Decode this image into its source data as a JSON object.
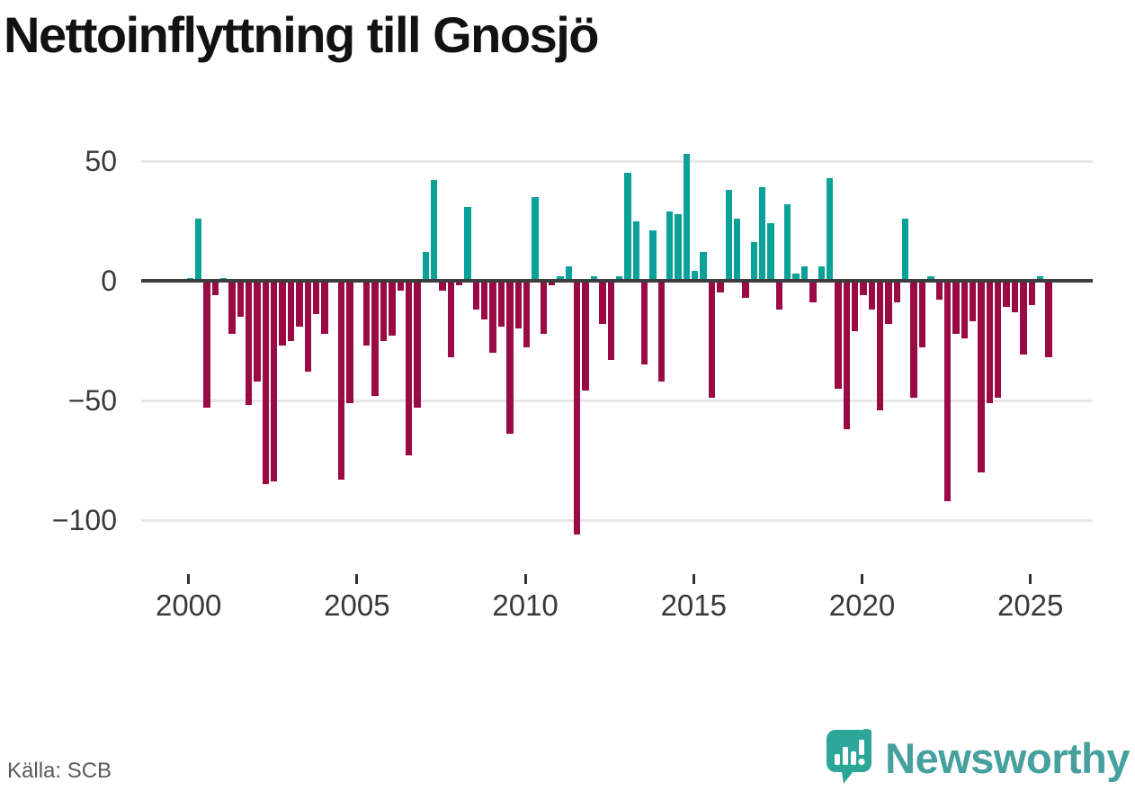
{
  "title": "Nettoinflyttning till Gnosjö",
  "source": "Källa: SCB",
  "branding": {
    "logo_text": "Newsworthy",
    "logo_icon": "speech-bubble-bar-chart-icon"
  },
  "colors": {
    "positive_bar": "#0aa198",
    "negative_bar": "#9a0a45",
    "zero_axis": "#3d3d3d",
    "gridline": "#e7e7e7",
    "title_text": "#121212",
    "axis_text": "#383838",
    "source_text": "#5a5a5a",
    "brand_teal": "#46a09d",
    "brand_bubble": "#2ca699"
  },
  "chart_data": {
    "type": "bar",
    "title": "Nettoinflyttning till Gnosjö",
    "xlabel": "",
    "ylabel": "",
    "frequency": "quarterly",
    "period_start": "2000 Q1",
    "period_end": "2025 Q3",
    "grid": true,
    "legend": false,
    "ylim": [
      -115,
      60
    ],
    "y_axis": {
      "ticks": [
        {
          "value": 50,
          "label": "50"
        },
        {
          "value": 0,
          "label": "0"
        },
        {
          "value": -50,
          "label": "−50"
        },
        {
          "value": -100,
          "label": "−100"
        }
      ]
    },
    "x_axis": {
      "ticks": [
        {
          "year": 2000,
          "label": "2000"
        },
        {
          "year": 2005,
          "label": "2005"
        },
        {
          "year": 2010,
          "label": "2010"
        },
        {
          "year": 2015,
          "label": "2015"
        },
        {
          "year": 2020,
          "label": "2020"
        },
        {
          "year": 2025,
          "label": "2025"
        }
      ]
    },
    "years": [
      {
        "year": 2000,
        "q": [
          1,
          26,
          -53,
          -6
        ]
      },
      {
        "year": 2001,
        "q": [
          1,
          -22,
          -15,
          -52
        ]
      },
      {
        "year": 2002,
        "q": [
          -42,
          -85,
          -84,
          -27
        ]
      },
      {
        "year": 2003,
        "q": [
          -25,
          -19,
          -38,
          -14
        ]
      },
      {
        "year": 2004,
        "q": [
          -22,
          0,
          -83,
          -51
        ]
      },
      {
        "year": 2005,
        "q": [
          0,
          -27,
          -48,
          -25
        ]
      },
      {
        "year": 2006,
        "q": [
          -23,
          -4,
          -73,
          -53
        ]
      },
      {
        "year": 2007,
        "q": [
          12,
          42,
          -4,
          -32
        ]
      },
      {
        "year": 2008,
        "q": [
          -2,
          31,
          -12,
          -16
        ]
      },
      {
        "year": 2009,
        "q": [
          -30,
          -19,
          -64,
          -20
        ]
      },
      {
        "year": 2010,
        "q": [
          -28,
          35,
          -22,
          -2
        ]
      },
      {
        "year": 2011,
        "q": [
          2,
          6,
          -106,
          -46
        ]
      },
      {
        "year": 2012,
        "q": [
          2,
          -18,
          -33,
          2
        ]
      },
      {
        "year": 2013,
        "q": [
          45,
          25,
          -35,
          21
        ]
      },
      {
        "year": 2014,
        "q": [
          -42,
          29,
          28,
          53
        ]
      },
      {
        "year": 2015,
        "q": [
          4,
          12,
          -49,
          -5
        ]
      },
      {
        "year": 2016,
        "q": [
          38,
          26,
          -7,
          16
        ]
      },
      {
        "year": 2017,
        "q": [
          39,
          24,
          -12,
          32
        ]
      },
      {
        "year": 2018,
        "q": [
          3,
          6,
          -9,
          6
        ]
      },
      {
        "year": 2019,
        "q": [
          43,
          -45,
          -62,
          -21
        ]
      },
      {
        "year": 2020,
        "q": [
          -6,
          -12,
          -54,
          -18
        ]
      },
      {
        "year": 2021,
        "q": [
          -9,
          26,
          -49,
          -28
        ]
      },
      {
        "year": 2022,
        "q": [
          2,
          -8,
          -92,
          -22
        ]
      },
      {
        "year": 2023,
        "q": [
          -24,
          -17,
          -80,
          -51
        ]
      },
      {
        "year": 2024,
        "q": [
          -49,
          -11,
          -13,
          -31
        ]
      },
      {
        "year": 2025,
        "q": [
          -10,
          2,
          -32
        ]
      }
    ]
  }
}
